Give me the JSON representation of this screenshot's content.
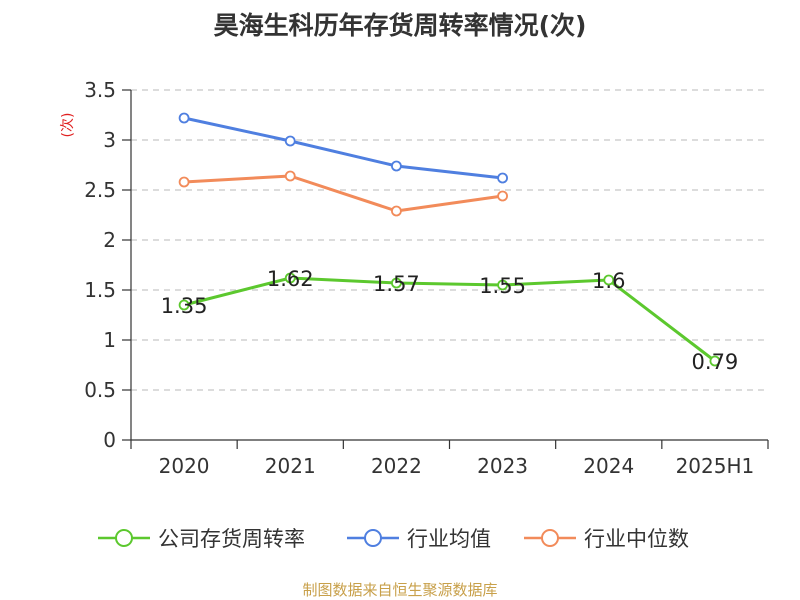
{
  "title": "昊海生科历年存货周转率情况(次)",
  "source": "制图数据来自恒生聚源数据库",
  "chart_data": {
    "type": "line",
    "title": "昊海生科历年存货周转率情况(次)",
    "ylabel": "(次)",
    "xlabel": "",
    "categories": [
      "2020",
      "2021",
      "2022",
      "2023",
      "2024",
      "2025H1"
    ],
    "ylim": [
      0,
      3.5
    ],
    "yticks": [
      0,
      0.5,
      1,
      1.5,
      2,
      2.5,
      3,
      3.5
    ],
    "ytick_labels": [
      "0",
      "0.5",
      "1",
      "1.5",
      "2",
      "2.5",
      "3",
      "3.5"
    ],
    "grid": true,
    "legend_position": "bottom",
    "series": [
      {
        "name": "公司存货周转率",
        "color": "#5cc82e",
        "values": [
          1.35,
          1.62,
          1.57,
          1.55,
          1.6,
          0.79
        ],
        "labels": [
          "1.35",
          "1.62",
          "1.57",
          "1.55",
          "1.6",
          "0.79"
        ]
      },
      {
        "name": "行业均值",
        "color": "#4f7fe0",
        "values": [
          3.22,
          2.99,
          2.74,
          2.62,
          null,
          null
        ]
      },
      {
        "name": "行业中位数",
        "color": "#f28b5a",
        "values": [
          2.58,
          2.64,
          2.29,
          2.44,
          null,
          null
        ]
      }
    ]
  }
}
